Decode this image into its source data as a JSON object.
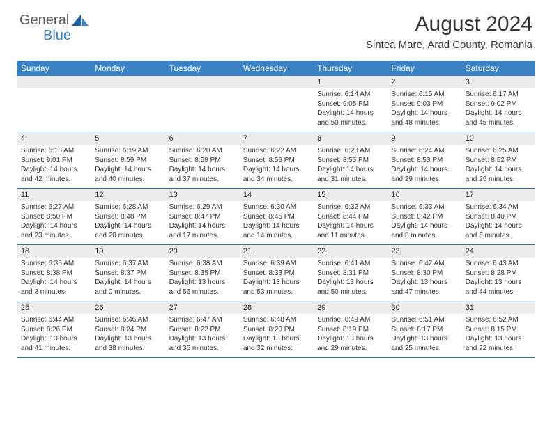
{
  "brand": {
    "part1": "General",
    "part2": "Blue"
  },
  "title": "August 2024",
  "location": "Sintea Mare, Arad County, Romania",
  "colors": {
    "header_bg": "#3a82c4",
    "border": "#2f6aa8",
    "daynum_bg": "#ececec",
    "text": "#333333",
    "logo_gray": "#5a5a5a",
    "logo_blue": "#3a7fc4"
  },
  "weekdays": [
    "Sunday",
    "Monday",
    "Tuesday",
    "Wednesday",
    "Thursday",
    "Friday",
    "Saturday"
  ],
  "weeks": [
    {
      "nums": [
        "",
        "",
        "",
        "",
        "1",
        "2",
        "3"
      ],
      "cells": [
        null,
        null,
        null,
        null,
        {
          "sunrise": "Sunrise: 6:14 AM",
          "sunset": "Sunset: 9:05 PM",
          "day1": "Daylight: 14 hours",
          "day2": "and 50 minutes."
        },
        {
          "sunrise": "Sunrise: 6:15 AM",
          "sunset": "Sunset: 9:03 PM",
          "day1": "Daylight: 14 hours",
          "day2": "and 48 minutes."
        },
        {
          "sunrise": "Sunrise: 6:17 AM",
          "sunset": "Sunset: 9:02 PM",
          "day1": "Daylight: 14 hours",
          "day2": "and 45 minutes."
        }
      ]
    },
    {
      "nums": [
        "4",
        "5",
        "6",
        "7",
        "8",
        "9",
        "10"
      ],
      "cells": [
        {
          "sunrise": "Sunrise: 6:18 AM",
          "sunset": "Sunset: 9:01 PM",
          "day1": "Daylight: 14 hours",
          "day2": "and 42 minutes."
        },
        {
          "sunrise": "Sunrise: 6:19 AM",
          "sunset": "Sunset: 8:59 PM",
          "day1": "Daylight: 14 hours",
          "day2": "and 40 minutes."
        },
        {
          "sunrise": "Sunrise: 6:20 AM",
          "sunset": "Sunset: 8:58 PM",
          "day1": "Daylight: 14 hours",
          "day2": "and 37 minutes."
        },
        {
          "sunrise": "Sunrise: 6:22 AM",
          "sunset": "Sunset: 8:56 PM",
          "day1": "Daylight: 14 hours",
          "day2": "and 34 minutes."
        },
        {
          "sunrise": "Sunrise: 6:23 AM",
          "sunset": "Sunset: 8:55 PM",
          "day1": "Daylight: 14 hours",
          "day2": "and 31 minutes."
        },
        {
          "sunrise": "Sunrise: 6:24 AM",
          "sunset": "Sunset: 8:53 PM",
          "day1": "Daylight: 14 hours",
          "day2": "and 29 minutes."
        },
        {
          "sunrise": "Sunrise: 6:25 AM",
          "sunset": "Sunset: 8:52 PM",
          "day1": "Daylight: 14 hours",
          "day2": "and 26 minutes."
        }
      ]
    },
    {
      "nums": [
        "11",
        "12",
        "13",
        "14",
        "15",
        "16",
        "17"
      ],
      "cells": [
        {
          "sunrise": "Sunrise: 6:27 AM",
          "sunset": "Sunset: 8:50 PM",
          "day1": "Daylight: 14 hours",
          "day2": "and 23 minutes."
        },
        {
          "sunrise": "Sunrise: 6:28 AM",
          "sunset": "Sunset: 8:48 PM",
          "day1": "Daylight: 14 hours",
          "day2": "and 20 minutes."
        },
        {
          "sunrise": "Sunrise: 6:29 AM",
          "sunset": "Sunset: 8:47 PM",
          "day1": "Daylight: 14 hours",
          "day2": "and 17 minutes."
        },
        {
          "sunrise": "Sunrise: 6:30 AM",
          "sunset": "Sunset: 8:45 PM",
          "day1": "Daylight: 14 hours",
          "day2": "and 14 minutes."
        },
        {
          "sunrise": "Sunrise: 6:32 AM",
          "sunset": "Sunset: 8:44 PM",
          "day1": "Daylight: 14 hours",
          "day2": "and 11 minutes."
        },
        {
          "sunrise": "Sunrise: 6:33 AM",
          "sunset": "Sunset: 8:42 PM",
          "day1": "Daylight: 14 hours",
          "day2": "and 8 minutes."
        },
        {
          "sunrise": "Sunrise: 6:34 AM",
          "sunset": "Sunset: 8:40 PM",
          "day1": "Daylight: 14 hours",
          "day2": "and 5 minutes."
        }
      ]
    },
    {
      "nums": [
        "18",
        "19",
        "20",
        "21",
        "22",
        "23",
        "24"
      ],
      "cells": [
        {
          "sunrise": "Sunrise: 6:35 AM",
          "sunset": "Sunset: 8:38 PM",
          "day1": "Daylight: 14 hours",
          "day2": "and 3 minutes."
        },
        {
          "sunrise": "Sunrise: 6:37 AM",
          "sunset": "Sunset: 8:37 PM",
          "day1": "Daylight: 14 hours",
          "day2": "and 0 minutes."
        },
        {
          "sunrise": "Sunrise: 6:38 AM",
          "sunset": "Sunset: 8:35 PM",
          "day1": "Daylight: 13 hours",
          "day2": "and 56 minutes."
        },
        {
          "sunrise": "Sunrise: 6:39 AM",
          "sunset": "Sunset: 8:33 PM",
          "day1": "Daylight: 13 hours",
          "day2": "and 53 minutes."
        },
        {
          "sunrise": "Sunrise: 6:41 AM",
          "sunset": "Sunset: 8:31 PM",
          "day1": "Daylight: 13 hours",
          "day2": "and 50 minutes."
        },
        {
          "sunrise": "Sunrise: 6:42 AM",
          "sunset": "Sunset: 8:30 PM",
          "day1": "Daylight: 13 hours",
          "day2": "and 47 minutes."
        },
        {
          "sunrise": "Sunrise: 6:43 AM",
          "sunset": "Sunset: 8:28 PM",
          "day1": "Daylight: 13 hours",
          "day2": "and 44 minutes."
        }
      ]
    },
    {
      "nums": [
        "25",
        "26",
        "27",
        "28",
        "29",
        "30",
        "31"
      ],
      "cells": [
        {
          "sunrise": "Sunrise: 6:44 AM",
          "sunset": "Sunset: 8:26 PM",
          "day1": "Daylight: 13 hours",
          "day2": "and 41 minutes."
        },
        {
          "sunrise": "Sunrise: 6:46 AM",
          "sunset": "Sunset: 8:24 PM",
          "day1": "Daylight: 13 hours",
          "day2": "and 38 minutes."
        },
        {
          "sunrise": "Sunrise: 6:47 AM",
          "sunset": "Sunset: 8:22 PM",
          "day1": "Daylight: 13 hours",
          "day2": "and 35 minutes."
        },
        {
          "sunrise": "Sunrise: 6:48 AM",
          "sunset": "Sunset: 8:20 PM",
          "day1": "Daylight: 13 hours",
          "day2": "and 32 minutes."
        },
        {
          "sunrise": "Sunrise: 6:49 AM",
          "sunset": "Sunset: 8:19 PM",
          "day1": "Daylight: 13 hours",
          "day2": "and 29 minutes."
        },
        {
          "sunrise": "Sunrise: 6:51 AM",
          "sunset": "Sunset: 8:17 PM",
          "day1": "Daylight: 13 hours",
          "day2": "and 25 minutes."
        },
        {
          "sunrise": "Sunrise: 6:52 AM",
          "sunset": "Sunset: 8:15 PM",
          "day1": "Daylight: 13 hours",
          "day2": "and 22 minutes."
        }
      ]
    }
  ]
}
